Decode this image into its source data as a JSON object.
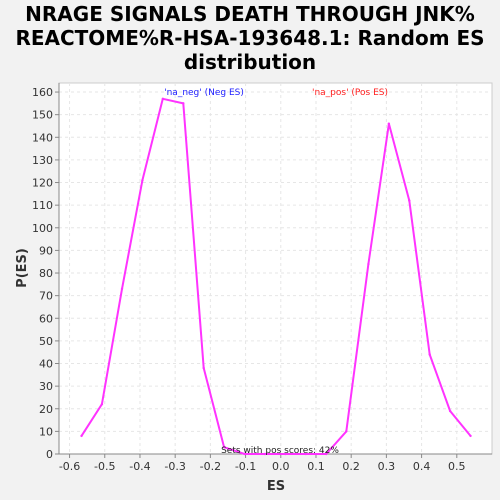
{
  "chart_data": {
    "type": "line",
    "title_lines": [
      "NRAGE SIGNALS DEATH THROUGH JNK%",
      "REACTOME%R-HSA-193648.1: Random ES",
      "distribution"
    ],
    "xlabel": "ES",
    "ylabel": "P(ES)",
    "xlim": [
      -0.63,
      0.6
    ],
    "ylim": [
      0,
      164
    ],
    "x_ticks": [
      -0.6,
      -0.5,
      -0.4,
      -0.3,
      -0.2,
      -0.1,
      0.0,
      0.1,
      0.2,
      0.3,
      0.4,
      0.5
    ],
    "x_tick_labels": [
      "-0.6",
      "-0.5",
      "-0.4",
      "-0.3",
      "-0.2",
      "-0.1",
      "0.0",
      "0.1",
      "0.2",
      "0.3",
      "0.4",
      "0.5"
    ],
    "y_ticks": [
      0,
      10,
      20,
      30,
      40,
      50,
      60,
      70,
      80,
      90,
      100,
      110,
      120,
      130,
      140,
      150,
      160
    ],
    "y_tick_labels": [
      "0",
      "10",
      "20",
      "30",
      "40",
      "50",
      "60",
      "70",
      "80",
      "90",
      "100",
      "110",
      "120",
      "130",
      "140",
      "150",
      "160"
    ],
    "grid": true,
    "legend": {
      "neg": "'na_neg' (Neg ES)",
      "pos": "'na_pos' (Pos ES)"
    },
    "annotation": "Sets with pos scores: 42%",
    "series": [
      {
        "color": "#ff33ff",
        "points": [
          [
            -0.566,
            8
          ],
          [
            -0.508,
            22
          ],
          [
            -0.451,
            73
          ],
          [
            -0.393,
            121
          ],
          [
            -0.335,
            157
          ],
          [
            -0.277,
            155
          ],
          [
            -0.219,
            38
          ],
          [
            -0.161,
            3
          ],
          [
            -0.103,
            0
          ],
          [
            -0.045,
            0
          ],
          [
            0.013,
            0
          ],
          [
            0.071,
            0
          ],
          [
            0.129,
            0
          ],
          [
            0.186,
            10
          ],
          [
            0.249,
            84
          ],
          [
            0.307,
            146
          ],
          [
            0.365,
            112
          ],
          [
            0.423,
            44
          ],
          [
            0.481,
            19
          ],
          [
            0.539,
            8
          ]
        ]
      }
    ]
  }
}
